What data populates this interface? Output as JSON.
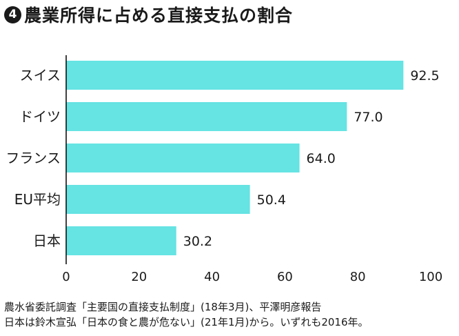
{
  "title": {
    "number": "4",
    "text": "農業所得に占める直接支払の割合"
  },
  "colors": {
    "bar": "#66e3e3",
    "axis": "#000000",
    "text": "#1a1a1a"
  },
  "chart_data": {
    "type": "bar",
    "orientation": "horizontal",
    "categories": [
      "スイス",
      "ドイツ",
      "フランス",
      "EU平均",
      "日本"
    ],
    "values": [
      92.5,
      77.0,
      64.0,
      50.4,
      30.2
    ],
    "value_labels": [
      "92.5",
      "77.0",
      "64.0",
      "50.4",
      "30.2"
    ],
    "xlim": [
      0,
      100
    ],
    "xticks": [
      0,
      20,
      40,
      60,
      80,
      100
    ],
    "xlabel": "",
    "ylabel": "",
    "grid": false,
    "legend": "none"
  },
  "source": {
    "line1": "農水省委託調査「主要国の直接支払制度」(18年3月)、平澤明彦報告",
    "line2": "日本は鈴木宣弘「日本の食と農が危ない」(21年1月)から。いずれも2016年。"
  }
}
